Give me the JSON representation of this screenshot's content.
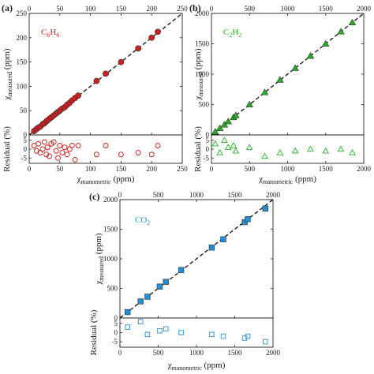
{
  "chart_data": [
    {
      "id": "a",
      "type": "scatter",
      "panel_label": "(a)",
      "compound": "C6H6",
      "compound_base": "C",
      "compound_sub1": "6",
      "compound_mid": "H",
      "compound_sub2": "6",
      "color": "#cc1f1f",
      "xlabel_base": "χ",
      "xlabel_sub": "manometric",
      "xlabel_unit": " (ppm)",
      "ylabel_base": "χ",
      "ylabel_sub": "measured",
      "ylabel_unit": " (ppm)",
      "residual_label": "Residual (%)",
      "xlim": [
        0,
        250
      ],
      "ylim": [
        0,
        250
      ],
      "res_ylim": [
        -8,
        8
      ],
      "x_ticks": [
        0,
        50,
        100,
        150,
        200,
        250
      ],
      "y_ticks": [
        0,
        50,
        100,
        150,
        200,
        250
      ],
      "res_ticks": [
        5,
        0,
        -5
      ],
      "x_tick_labels": [
        "0",
        "50",
        "100",
        "150",
        "200",
        "250"
      ],
      "y_tick_labels": [
        "0",
        "50",
        "100",
        "150",
        "200",
        "250"
      ],
      "res_tick_labels": [
        "5",
        "0",
        "-5"
      ],
      "marker_main": "filled-circle",
      "marker_residual": "open-circle",
      "x": [
        8,
        12,
        15,
        18,
        22,
        25,
        28,
        30,
        33,
        36,
        40,
        44,
        47,
        50,
        54,
        58,
        62,
        66,
        70,
        75,
        80,
        110,
        125,
        150,
        178,
        200,
        210
      ],
      "y": [
        8,
        12,
        15,
        17,
        22,
        24,
        28,
        30,
        33,
        36,
        40,
        44,
        47,
        50,
        54,
        57,
        62,
        66,
        71,
        76,
        81,
        111,
        126,
        150,
        178,
        200,
        212
      ],
      "residual": [
        2,
        -1,
        3,
        -2,
        0,
        4,
        -3,
        1,
        -4,
        3,
        4,
        -1,
        -5,
        2,
        -2,
        1,
        -3,
        0,
        2,
        -6,
        2,
        -3,
        2,
        -3,
        -2,
        -3,
        2
      ],
      "fit": "y = x"
    },
    {
      "id": "b",
      "type": "scatter",
      "panel_label": "(b)",
      "compound": "C2H2",
      "compound_base": "C",
      "compound_sub1": "2",
      "compound_mid": "H",
      "compound_sub2": "2",
      "color": "#22b022",
      "xlabel_base": "χ",
      "xlabel_sub": "manometric",
      "xlabel_unit": " (ppm)",
      "ylabel_base": "χ",
      "ylabel_sub": "measured",
      "ylabel_unit": " (ppm)",
      "residual_label": "Residual (%)",
      "xlim": [
        0,
        2000
      ],
      "ylim": [
        0,
        2000
      ],
      "res_ylim": [
        -8,
        8
      ],
      "x_ticks": [
        0,
        500,
        1000,
        1500,
        2000
      ],
      "y_ticks": [
        0,
        500,
        1000,
        1500,
        2000
      ],
      "res_ticks": [
        5,
        0,
        -5
      ],
      "x_tick_labels": [
        "0",
        "500",
        "1000",
        "1500",
        "2000"
      ],
      "y_tick_labels": [
        "0",
        "500",
        "1000",
        "1500",
        "2000"
      ],
      "res_tick_labels": [
        "5",
        "0",
        "-5"
      ],
      "marker_main": "filled-triangle",
      "marker_residual": "open-triangle",
      "x": [
        50,
        110,
        170,
        220,
        290,
        320,
        500,
        700,
        900,
        1100,
        1300,
        1500,
        1700,
        1850
      ],
      "y": [
        52,
        110,
        168,
        222,
        290,
        322,
        500,
        700,
        905,
        1100,
        1300,
        1500,
        1700,
        1850
      ],
      "residual": [
        3,
        -2,
        5,
        1,
        2,
        -1,
        1,
        -4,
        -2,
        -1,
        0,
        -1,
        0,
        -2
      ],
      "fit": "y = x"
    },
    {
      "id": "c",
      "type": "scatter",
      "panel_label": "(c)",
      "compound": "CO2",
      "compound_base": "CO",
      "compound_sub1": "2",
      "compound_mid": "",
      "compound_sub2": "",
      "color": "#1f8fd8",
      "xlabel_base": "χ",
      "xlabel_sub": "manometric",
      "xlabel_unit": " (ppm)",
      "ylabel_base": "χ",
      "ylabel_sub": "measured",
      "ylabel_unit": " (ppm)",
      "residual_label": "Residual (%)",
      "xlim": [
        0,
        2000
      ],
      "ylim": [
        0,
        2000
      ],
      "res_ylim": [
        -8,
        8
      ],
      "x_ticks": [
        0,
        500,
        1000,
        1500,
        2000
      ],
      "y_ticks": [
        0,
        500,
        1000,
        1500,
        2000
      ],
      "res_ticks": [
        5,
        0,
        -5
      ],
      "x_tick_labels": [
        "0",
        "500",
        "1000",
        "1500",
        "2000"
      ],
      "y_tick_labels": [
        "0",
        "500",
        "1000",
        "1500",
        "2000"
      ],
      "res_tick_labels": [
        "5",
        "0",
        "-5"
      ],
      "marker_main": "filled-square",
      "marker_residual": "open-square",
      "x": [
        100,
        270,
        360,
        520,
        600,
        800,
        1200,
        1350,
        1630,
        1670,
        1900
      ],
      "y": [
        100,
        280,
        360,
        530,
        610,
        810,
        1190,
        1330,
        1620,
        1670,
        1850
      ],
      "residual": [
        3,
        6,
        -1,
        1,
        2,
        0,
        -1,
        -2,
        -3,
        -2,
        -5
      ],
      "fit": "y = x"
    }
  ]
}
